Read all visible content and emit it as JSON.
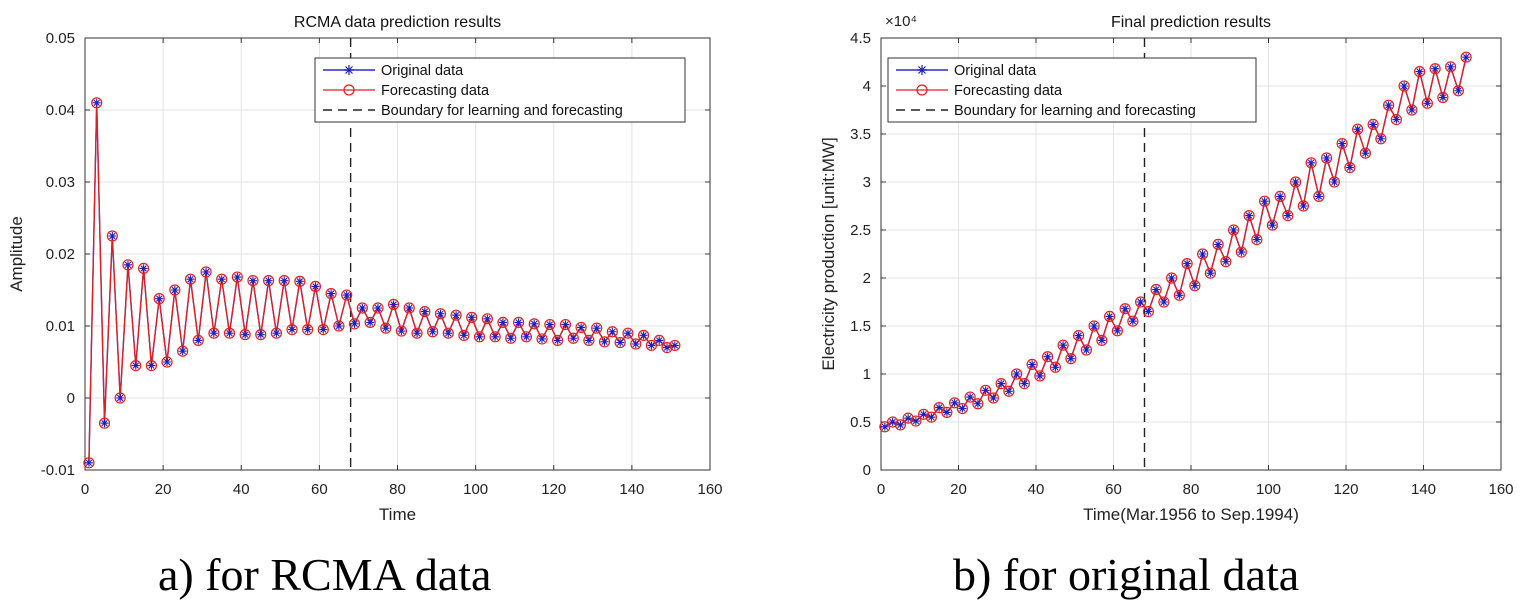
{
  "captions": [
    "a)  for  RCMA  data",
    "b)  for  original  data"
  ],
  "chart_data": [
    {
      "type": "line",
      "title": "RCMA data prediction results",
      "xlabel": "Time",
      "ylabel": "Amplitude",
      "xlim": [
        0,
        160
      ],
      "ylim": [
        -0.01,
        0.05
      ],
      "xticks": [
        0,
        20,
        40,
        60,
        80,
        100,
        120,
        140,
        160
      ],
      "yticks": [
        -0.01,
        0,
        0.01,
        0.02,
        0.03,
        0.04,
        0.05
      ],
      "ytick_labels": [
        "-0.01",
        "0",
        "0.01",
        "0.02",
        "0.03",
        "0.04",
        "0.05"
      ],
      "grid": true,
      "legend_position": "top-right",
      "boundary_x": 68,
      "legend": [
        "Original data",
        "Forecasting data",
        "Boundary for learning and forecasting"
      ],
      "series": [
        {
          "name": "Original data",
          "color": "#1f1fbf",
          "marker": "star"
        },
        {
          "name": "Forecasting data",
          "color": "#e02020",
          "marker": "circle"
        }
      ],
      "x": [
        1,
        3,
        5,
        7,
        9,
        11,
        13,
        15,
        17,
        19,
        21,
        23,
        25,
        27,
        29,
        31,
        33,
        35,
        37,
        39,
        41,
        43,
        45,
        47,
        49,
        51,
        53,
        55,
        57,
        59,
        61,
        63,
        65,
        67,
        69,
        71,
        73,
        75,
        77,
        79,
        81,
        83,
        85,
        87,
        89,
        91,
        93,
        95,
        97,
        99,
        101,
        103,
        105,
        107,
        109,
        111,
        113,
        115,
        117,
        119,
        121,
        123,
        125,
        127,
        129,
        131,
        133,
        135,
        137,
        139,
        141,
        143,
        145,
        147,
        149,
        151
      ],
      "values": [
        -0.009,
        0.041,
        -0.0035,
        0.0225,
        0.0,
        0.0185,
        0.0045,
        0.018,
        0.0045,
        0.0138,
        0.005,
        0.015,
        0.0065,
        0.0165,
        0.008,
        0.0175,
        0.009,
        0.0165,
        0.009,
        0.0168,
        0.0088,
        0.0163,
        0.0088,
        0.0163,
        0.009,
        0.0163,
        0.0095,
        0.0162,
        0.0095,
        0.0155,
        0.0095,
        0.0145,
        0.01,
        0.0143,
        0.0103,
        0.0125,
        0.0105,
        0.0125,
        0.0097,
        0.013,
        0.0093,
        0.0125,
        0.009,
        0.012,
        0.0092,
        0.0117,
        0.009,
        0.0115,
        0.0087,
        0.0112,
        0.0085,
        0.011,
        0.0085,
        0.0105,
        0.0083,
        0.0105,
        0.0085,
        0.0103,
        0.0082,
        0.0102,
        0.008,
        0.0102,
        0.0083,
        0.0098,
        0.008,
        0.0097,
        0.0078,
        0.0092,
        0.0077,
        0.009,
        0.0075,
        0.0087,
        0.0073,
        0.008,
        0.007,
        0.0073
      ]
    },
    {
      "type": "line",
      "title": "Final prediction results",
      "xlabel": "Time(Mar.1956 to Sep.1994)",
      "ylabel": "Electricity production [unit:MW]",
      "xlim": [
        0,
        160
      ],
      "ylim": [
        0,
        45000
      ],
      "xticks": [
        0,
        20,
        40,
        60,
        80,
        100,
        120,
        140,
        160
      ],
      "yticks": [
        0,
        5000,
        10000,
        15000,
        20000,
        25000,
        30000,
        35000,
        40000,
        45000
      ],
      "ytick_labels": [
        "0",
        "0.5",
        "1",
        "1.5",
        "2",
        "2.5",
        "3",
        "3.5",
        "4",
        "4.5"
      ],
      "y_multiplier": "×10⁴",
      "grid": true,
      "legend_position": "top-left",
      "boundary_x": 68,
      "legend": [
        "Original data",
        "Forecasting data",
        "Boundary for learning and forecasting"
      ],
      "series": [
        {
          "name": "Original data",
          "color": "#1f1fbf",
          "marker": "star"
        },
        {
          "name": "Forecasting data",
          "color": "#e02020",
          "marker": "circle"
        }
      ],
      "x": [
        1,
        3,
        5,
        7,
        9,
        11,
        13,
        15,
        17,
        19,
        21,
        23,
        25,
        27,
        29,
        31,
        33,
        35,
        37,
        39,
        41,
        43,
        45,
        47,
        49,
        51,
        53,
        55,
        57,
        59,
        61,
        63,
        65,
        67,
        69,
        71,
        73,
        75,
        77,
        79,
        81,
        83,
        85,
        87,
        89,
        91,
        93,
        95,
        97,
        99,
        101,
        103,
        105,
        107,
        109,
        111,
        113,
        115,
        117,
        119,
        121,
        123,
        125,
        127,
        129,
        131,
        133,
        135,
        137,
        139,
        141,
        143,
        145,
        147,
        149,
        151
      ],
      "values": [
        4500,
        5000,
        4700,
        5400,
        5100,
        5800,
        5500,
        6500,
        6000,
        7000,
        6400,
        7600,
        6900,
        8300,
        7500,
        9000,
        8200,
        10000,
        9000,
        11000,
        9800,
        11800,
        10700,
        13000,
        11600,
        14000,
        12500,
        15000,
        13500,
        16000,
        14500,
        16800,
        15500,
        17500,
        16500,
        18800,
        17500,
        20000,
        18200,
        21500,
        19200,
        22500,
        20500,
        23500,
        21700,
        25000,
        22700,
        26500,
        24000,
        28000,
        25500,
        28500,
        26500,
        30000,
        27500,
        32000,
        28500,
        32500,
        30000,
        34000,
        31500,
        35500,
        33000,
        36000,
        34500,
        38000,
        36500,
        40000,
        37500,
        41500,
        38200,
        41800,
        38800,
        42000,
        39500,
        43000
      ]
    }
  ]
}
